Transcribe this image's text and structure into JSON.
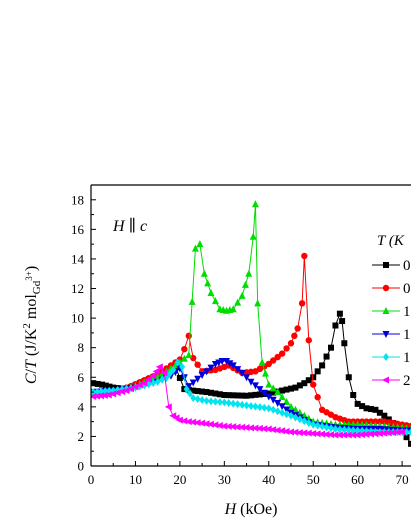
{
  "chart_data": {
    "type": "line",
    "xlabel": "H (kOe)",
    "ylabel": "C/T (J/K^2 mol_Gd3+)",
    "xlim": [
      0,
      72
    ],
    "ylim": [
      0,
      19
    ],
    "xticks": [
      0,
      10,
      20,
      30,
      40,
      50,
      60,
      70
    ],
    "yticks": [
      0,
      2,
      4,
      6,
      8,
      10,
      12,
      14,
      16,
      18
    ],
    "grid": false,
    "annotation": "H || c",
    "legend": {
      "title": "T (K",
      "placement": "right (cropped)",
      "entries": [
        "0",
        "0",
        "1",
        "1",
        "1",
        "2"
      ]
    },
    "series": [
      {
        "marker": "square",
        "color": "#000000",
        "x": [
          0.5,
          2.5,
          5,
          8,
          11,
          14,
          17,
          19,
          21,
          23,
          26,
          30,
          35,
          40,
          43,
          46,
          48,
          50,
          52,
          54,
          55,
          56,
          56.5,
          57,
          58,
          59,
          60,
          62,
          64,
          66,
          68,
          70,
          72
        ],
        "y": [
          5.6,
          5.5,
          5.3,
          5.2,
          5.6,
          6.0,
          6.3,
          6.7,
          5.2,
          5.1,
          5.0,
          4.8,
          4.75,
          4.9,
          5.1,
          5.3,
          5.6,
          6.0,
          6.8,
          8.0,
          9.5,
          10.3,
          9.8,
          8.3,
          6.0,
          4.8,
          4.2,
          3.9,
          3.8,
          3.4,
          2.9,
          2.4,
          1.5
        ]
      },
      {
        "marker": "circle",
        "color": "#ff0000",
        "x": [
          0.5,
          3,
          6,
          9,
          12,
          15,
          18,
          20,
          21,
          22,
          23,
          25,
          28,
          31,
          34,
          37,
          40,
          43,
          45,
          46.5,
          47.5,
          48,
          49,
          50,
          52,
          55,
          58,
          62,
          66,
          70,
          72
        ],
        "y": [
          4.8,
          4.9,
          5.1,
          5.4,
          5.8,
          6.2,
          6.8,
          7.2,
          7.9,
          8.8,
          7.3,
          6.4,
          6.5,
          6.8,
          6.3,
          6.4,
          6.9,
          7.6,
          8.3,
          9.3,
          11.0,
          14.2,
          8.5,
          5.5,
          3.8,
          3.3,
          3.0,
          3.0,
          3.0,
          2.8,
          2.7
        ]
      },
      {
        "marker": "triangle-up",
        "color": "#00dd00",
        "x": [
          0.5,
          5,
          10,
          15,
          18,
          20,
          22,
          23.5,
          24.5,
          25.5,
          27,
          29,
          30.5,
          32,
          34,
          35.5,
          36.5,
          37,
          37.5,
          38.5,
          40,
          42,
          45,
          50,
          55,
          60,
          65,
          70,
          72
        ],
        "y": [
          4.8,
          5.0,
          5.4,
          6.0,
          6.6,
          7.0,
          7.5,
          14.7,
          15.0,
          13.0,
          11.7,
          10.6,
          10.5,
          10.6,
          11.5,
          13.0,
          15.5,
          17.7,
          11.0,
          7.0,
          5.5,
          5.0,
          4.0,
          3.0,
          2.8,
          2.8,
          2.7,
          2.6,
          2.5
        ]
      },
      {
        "marker": "triangle-down",
        "color": "#0000dd",
        "x": [
          0.5,
          5,
          10,
          15,
          18,
          20,
          22,
          24,
          26,
          28,
          29.5,
          30.5,
          32,
          34,
          36,
          38,
          40,
          45,
          50,
          55,
          60,
          65,
          70,
          72
        ],
        "y": [
          5.0,
          5.1,
          5.3,
          5.7,
          6.1,
          6.6,
          5.4,
          5.9,
          6.4,
          6.9,
          7.1,
          7.1,
          6.8,
          6.3,
          5.7,
          5.2,
          4.7,
          3.6,
          2.8,
          2.6,
          2.5,
          2.5,
          2.4,
          2.4
        ]
      },
      {
        "marker": "diamond",
        "color": "#00e5ee",
        "x": [
          0.5,
          5,
          10,
          15,
          17,
          18.5,
          19.5,
          20.5,
          21.5,
          23,
          26,
          30,
          35,
          40,
          45,
          50,
          55,
          60,
          65,
          70,
          72
        ],
        "y": [
          5.0,
          5.1,
          5.3,
          5.7,
          6.0,
          6.5,
          7.0,
          6.7,
          5.2,
          4.6,
          4.4,
          4.3,
          4.1,
          3.9,
          3.4,
          2.8,
          2.5,
          2.4,
          2.3,
          2.3,
          2.3
        ]
      },
      {
        "marker": "triangle-left",
        "color": "#ff00ff",
        "x": [
          0.5,
          4,
          8,
          12,
          14,
          15.5,
          16.5,
          17.5,
          18.5,
          20,
          22,
          25,
          30,
          35,
          40,
          45,
          50,
          55,
          60,
          65,
          70
        ],
        "y": [
          4.7,
          4.8,
          5.1,
          5.6,
          6.1,
          6.7,
          6.3,
          4.0,
          3.4,
          3.1,
          3.0,
          2.9,
          2.7,
          2.6,
          2.5,
          2.3,
          2.2,
          2.1,
          2.1,
          2.2,
          2.3
        ]
      }
    ]
  }
}
